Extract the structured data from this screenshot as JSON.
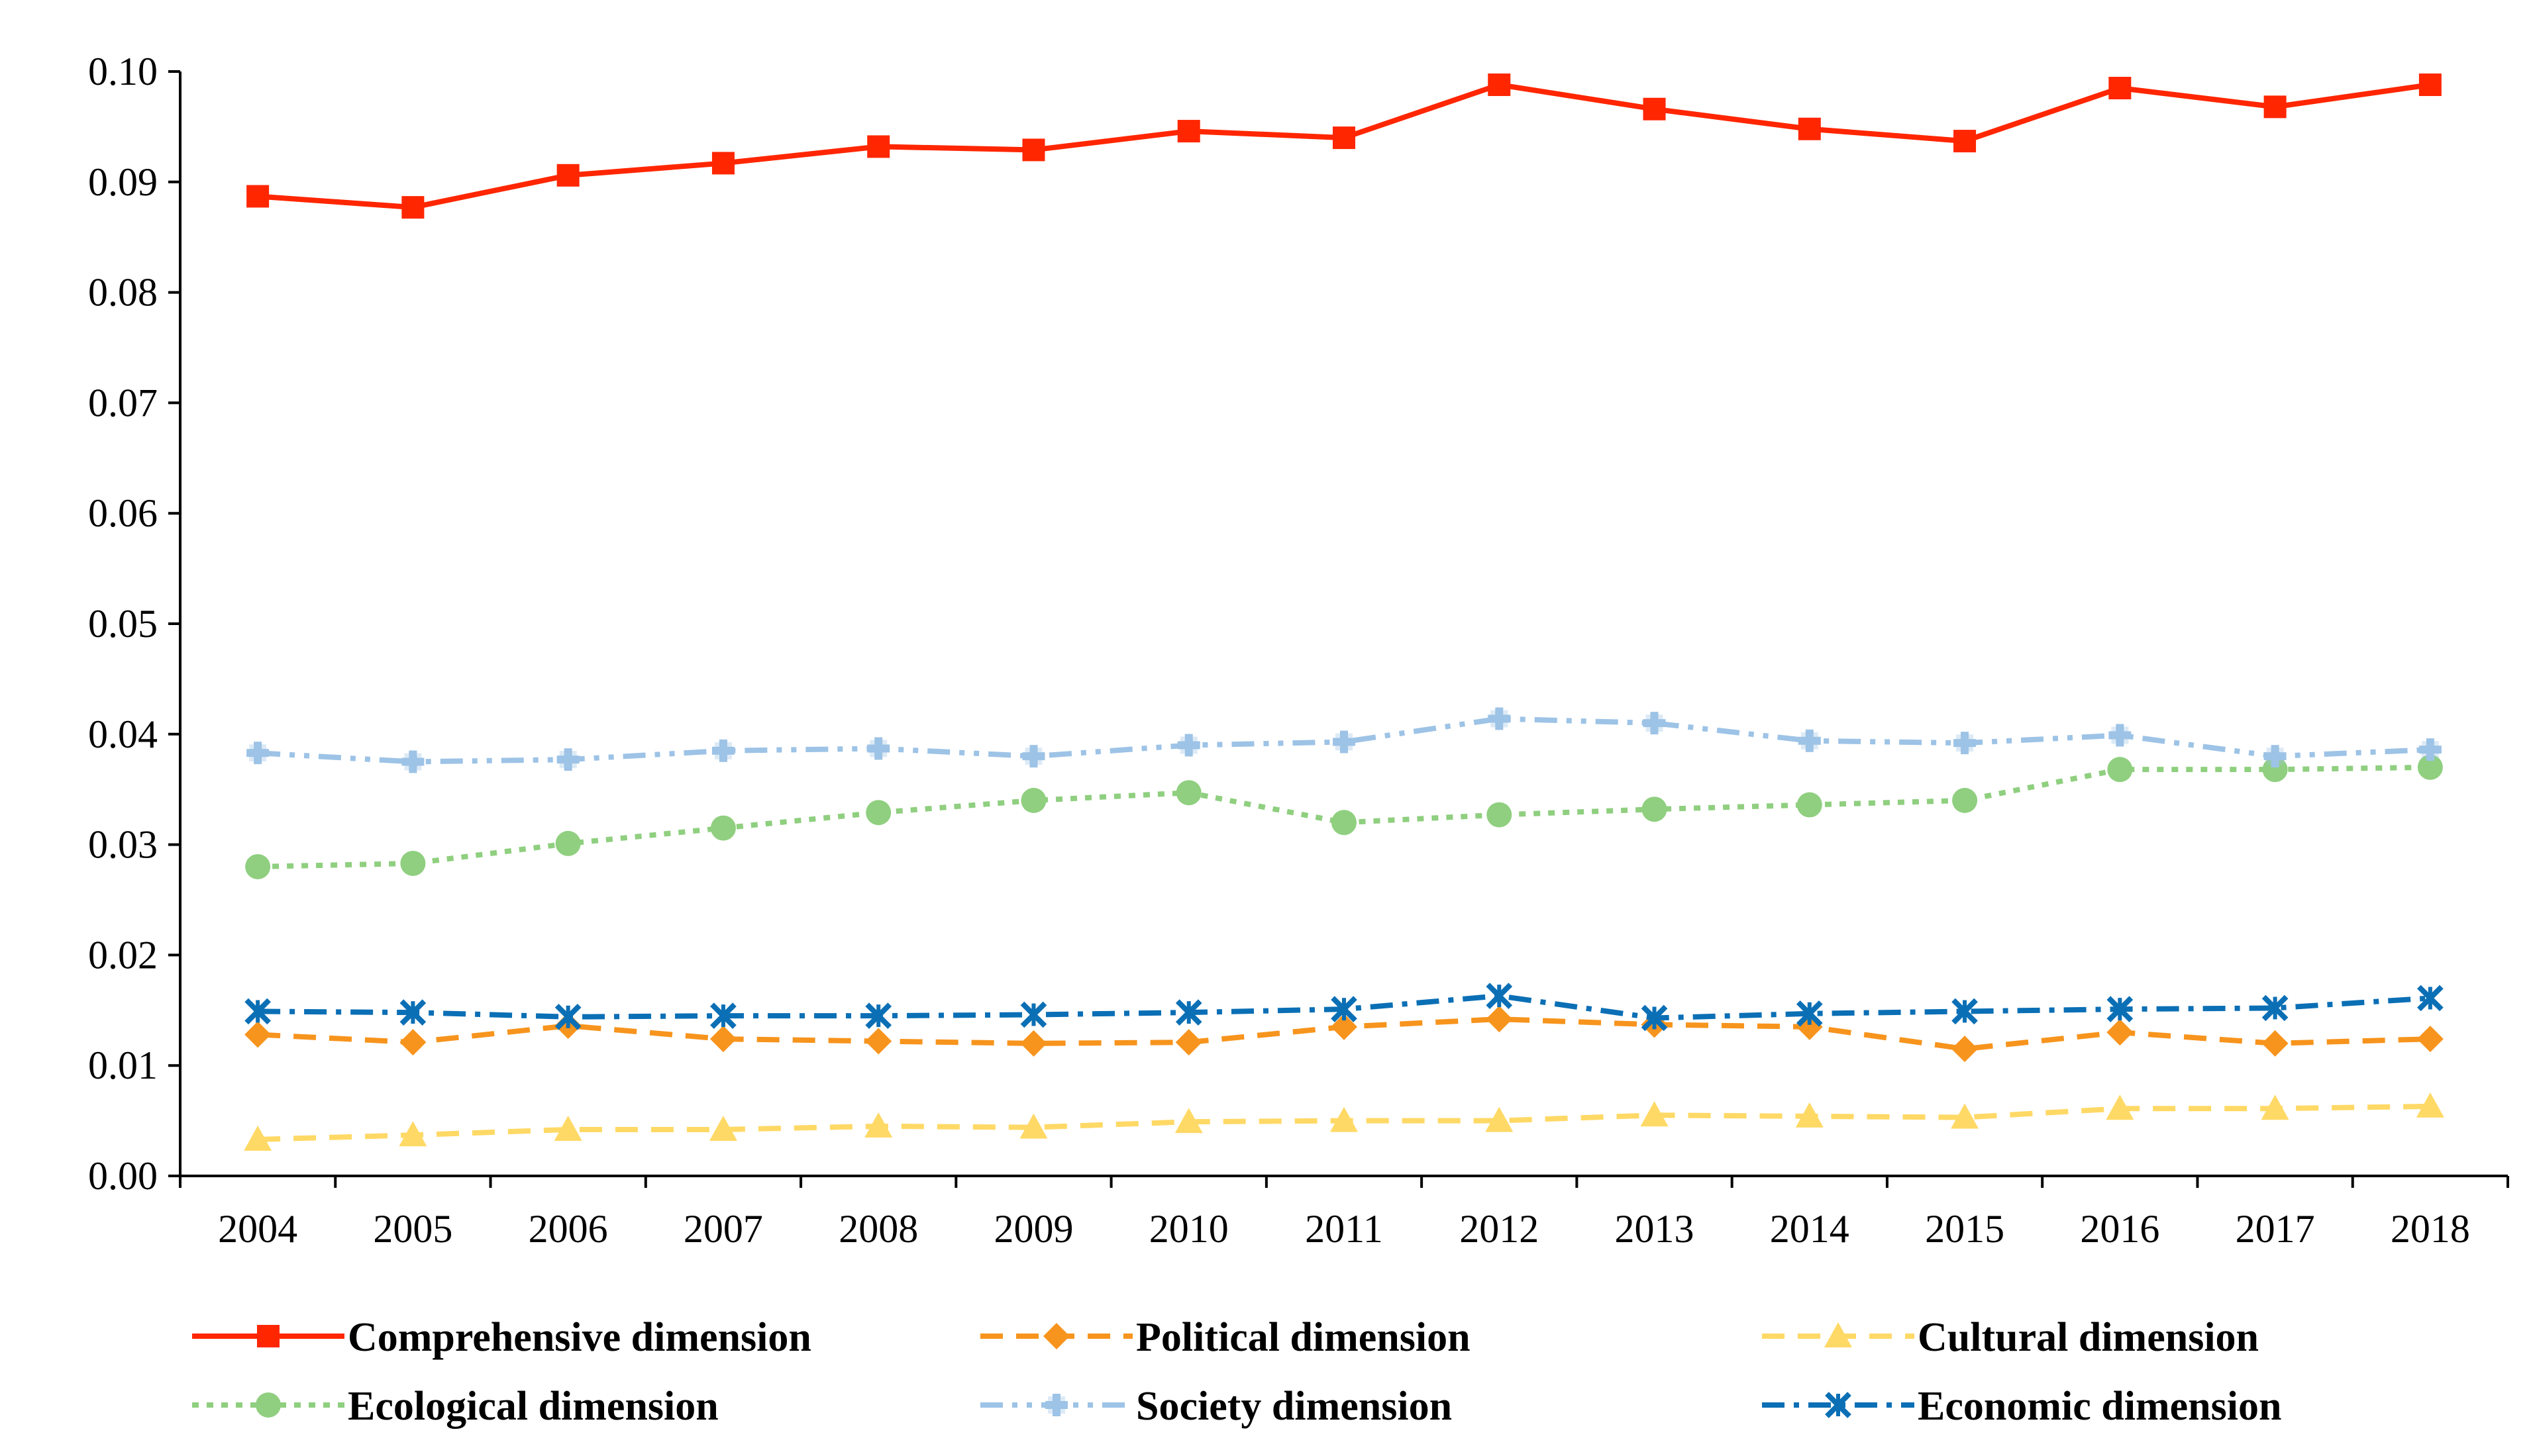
{
  "chart_data": {
    "type": "line",
    "title": "",
    "xlabel": "",
    "ylabel": "",
    "ylim": [
      0,
      0.1
    ],
    "yticks": [
      "0.00",
      "0.01",
      "0.02",
      "0.03",
      "0.04",
      "0.05",
      "0.06",
      "0.07",
      "0.08",
      "0.09",
      "0.10"
    ],
    "categories": [
      "2004",
      "2005",
      "2006",
      "2007",
      "2008",
      "2009",
      "2010",
      "2011",
      "2012",
      "2013",
      "2014",
      "2015",
      "2016",
      "2017",
      "2018"
    ],
    "legend_position": "bottom",
    "series": [
      {
        "name": "Comprehensive dimension",
        "color": "#ff2600",
        "dash": "solid",
        "marker": "square",
        "values": [
          0.0887,
          0.0877,
          0.0906,
          0.0917,
          0.0932,
          0.0929,
          0.0946,
          0.094,
          0.0988,
          0.0966,
          0.0948,
          0.0937,
          0.0985,
          0.0968,
          0.0988
        ]
      },
      {
        "name": "Political dimension",
        "color": "#f7941d",
        "dash": "dash",
        "marker": "diamond",
        "values": [
          0.0128,
          0.0121,
          0.0136,
          0.0124,
          0.0122,
          0.012,
          0.0121,
          0.0135,
          0.0142,
          0.0137,
          0.0135,
          0.0115,
          0.013,
          0.012,
          0.0124
        ]
      },
      {
        "name": "Cultural dimension",
        "color": "#ffd966",
        "dash": "dash",
        "marker": "triangle",
        "values": [
          0.0033,
          0.0037,
          0.0042,
          0.0042,
          0.0045,
          0.0044,
          0.0049,
          0.005,
          0.005,
          0.0055,
          0.0054,
          0.0053,
          0.0061,
          0.0061,
          0.0063
        ]
      },
      {
        "name": "Ecological dimension",
        "color": "#8fcf7f",
        "dash": "dot",
        "marker": "circle",
        "values": [
          0.028,
          0.0283,
          0.0301,
          0.0315,
          0.0329,
          0.034,
          0.0347,
          0.032,
          0.0327,
          0.0332,
          0.0336,
          0.034,
          0.0368,
          0.0368,
          0.037
        ]
      },
      {
        "name": "Society dimension",
        "color": "#9dc3e6",
        "dash": "dashdotdot",
        "marker": "plus",
        "values": [
          0.0383,
          0.0375,
          0.0377,
          0.0385,
          0.0387,
          0.038,
          0.039,
          0.0393,
          0.0414,
          0.041,
          0.0394,
          0.0392,
          0.0399,
          0.038,
          0.0386
        ]
      },
      {
        "name": "Economic dimension",
        "color": "#0b6fb5",
        "dash": "dashdot",
        "marker": "x",
        "values": [
          0.0149,
          0.0148,
          0.0144,
          0.0145,
          0.0145,
          0.0146,
          0.0148,
          0.0151,
          0.0163,
          0.0143,
          0.0147,
          0.0149,
          0.0151,
          0.0152,
          0.0161
        ]
      }
    ]
  }
}
